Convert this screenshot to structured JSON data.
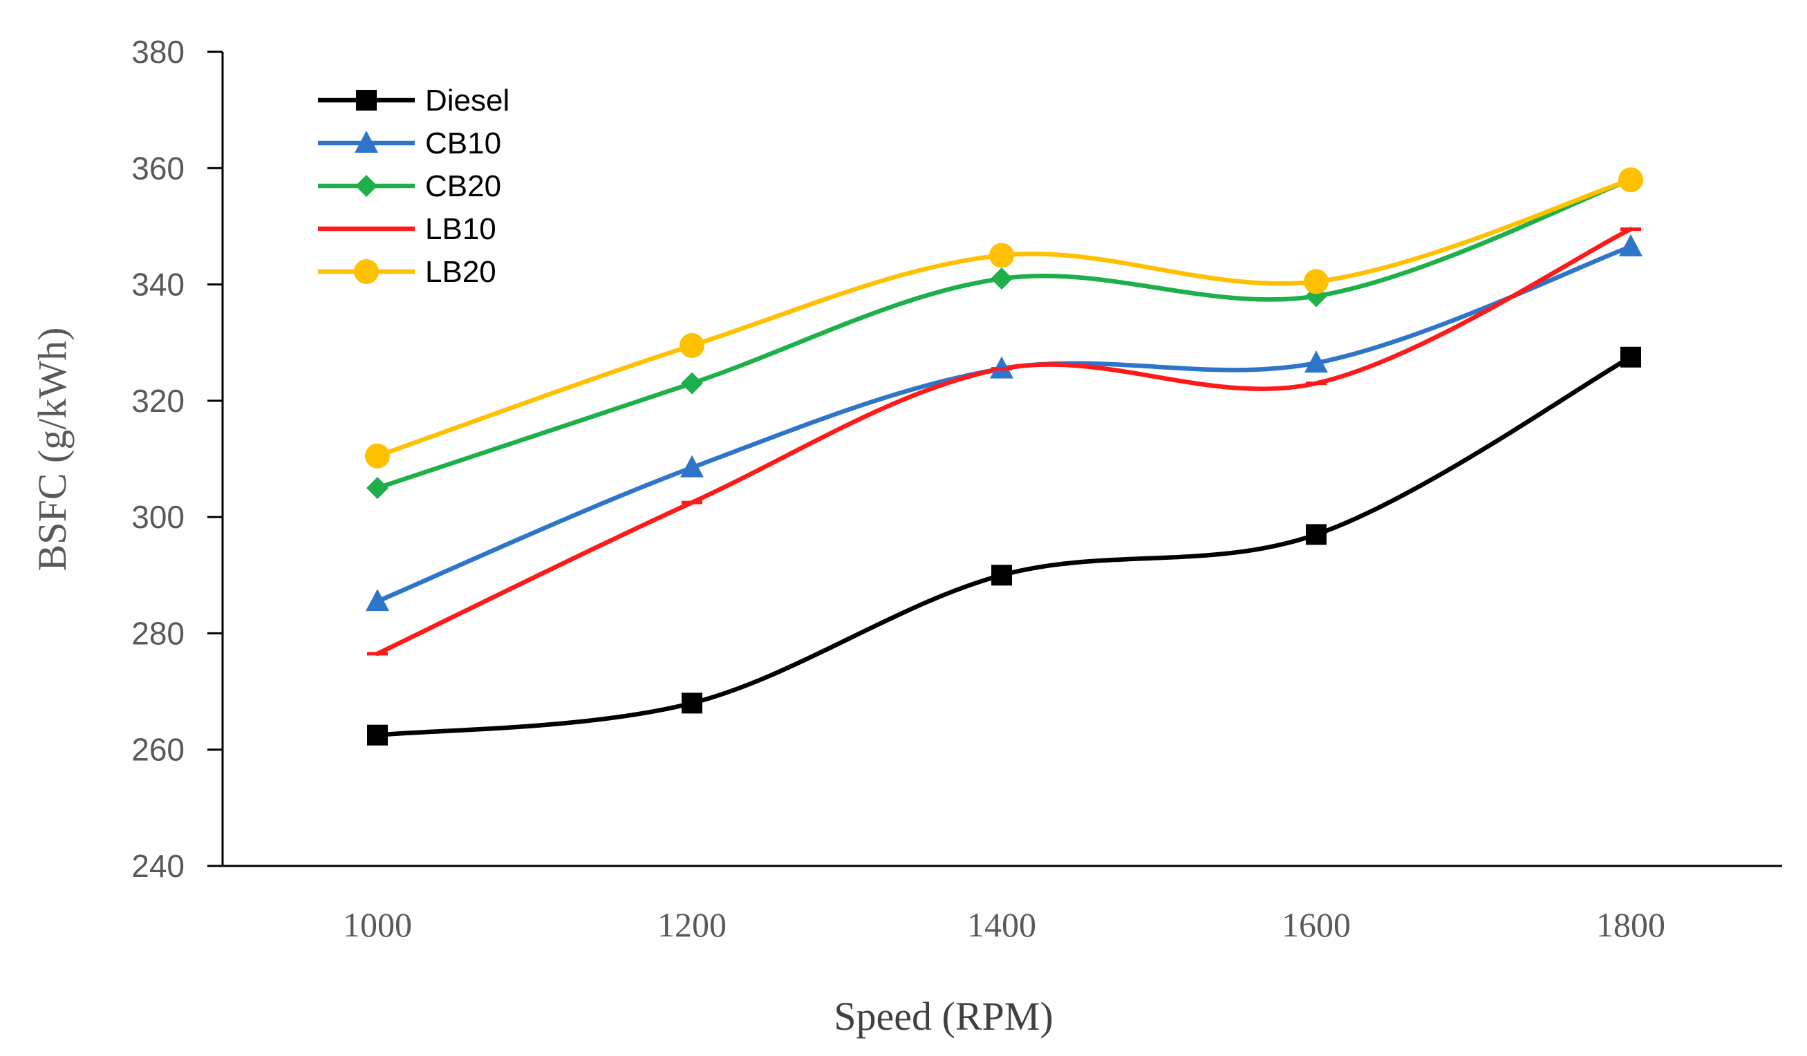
{
  "chart_data": {
    "type": "line",
    "title": "",
    "xlabel": "Speed (RPM)",
    "ylabel": "BSFC (g/kWh)",
    "categories": [
      "1000",
      "1200",
      "1400",
      "1600",
      "1800"
    ],
    "x": [
      1000,
      1200,
      1400,
      1600,
      1800
    ],
    "ylim": [
      240,
      380
    ],
    "yticks": [
      "240",
      "260",
      "280",
      "300",
      "320",
      "340",
      "360",
      "380"
    ],
    "ytick_values": [
      240,
      260,
      280,
      300,
      320,
      340,
      360,
      380
    ],
    "grid": false,
    "legend_position": "top-left",
    "series": [
      {
        "name": "Diesel",
        "color": "#000000",
        "marker": "square",
        "values": [
          262.5,
          268,
          290,
          297,
          327.5
        ]
      },
      {
        "name": "CB10",
        "color": "#2E75C9",
        "marker": "triangle",
        "values": [
          285.5,
          308.5,
          325.5,
          326.5,
          346.5
        ]
      },
      {
        "name": "CB20",
        "color": "#1DB04A",
        "marker": "diamond",
        "values": [
          305,
          323,
          341,
          338,
          358
        ]
      },
      {
        "name": "LB10",
        "color": "#FF1A1A",
        "marker": "dash",
        "values": [
          276.5,
          302.5,
          325.5,
          323,
          349.5
        ]
      },
      {
        "name": "LB20",
        "color": "#FFC000",
        "marker": "circle",
        "values": [
          310.5,
          329.5,
          345,
          340.5,
          358
        ]
      }
    ]
  }
}
